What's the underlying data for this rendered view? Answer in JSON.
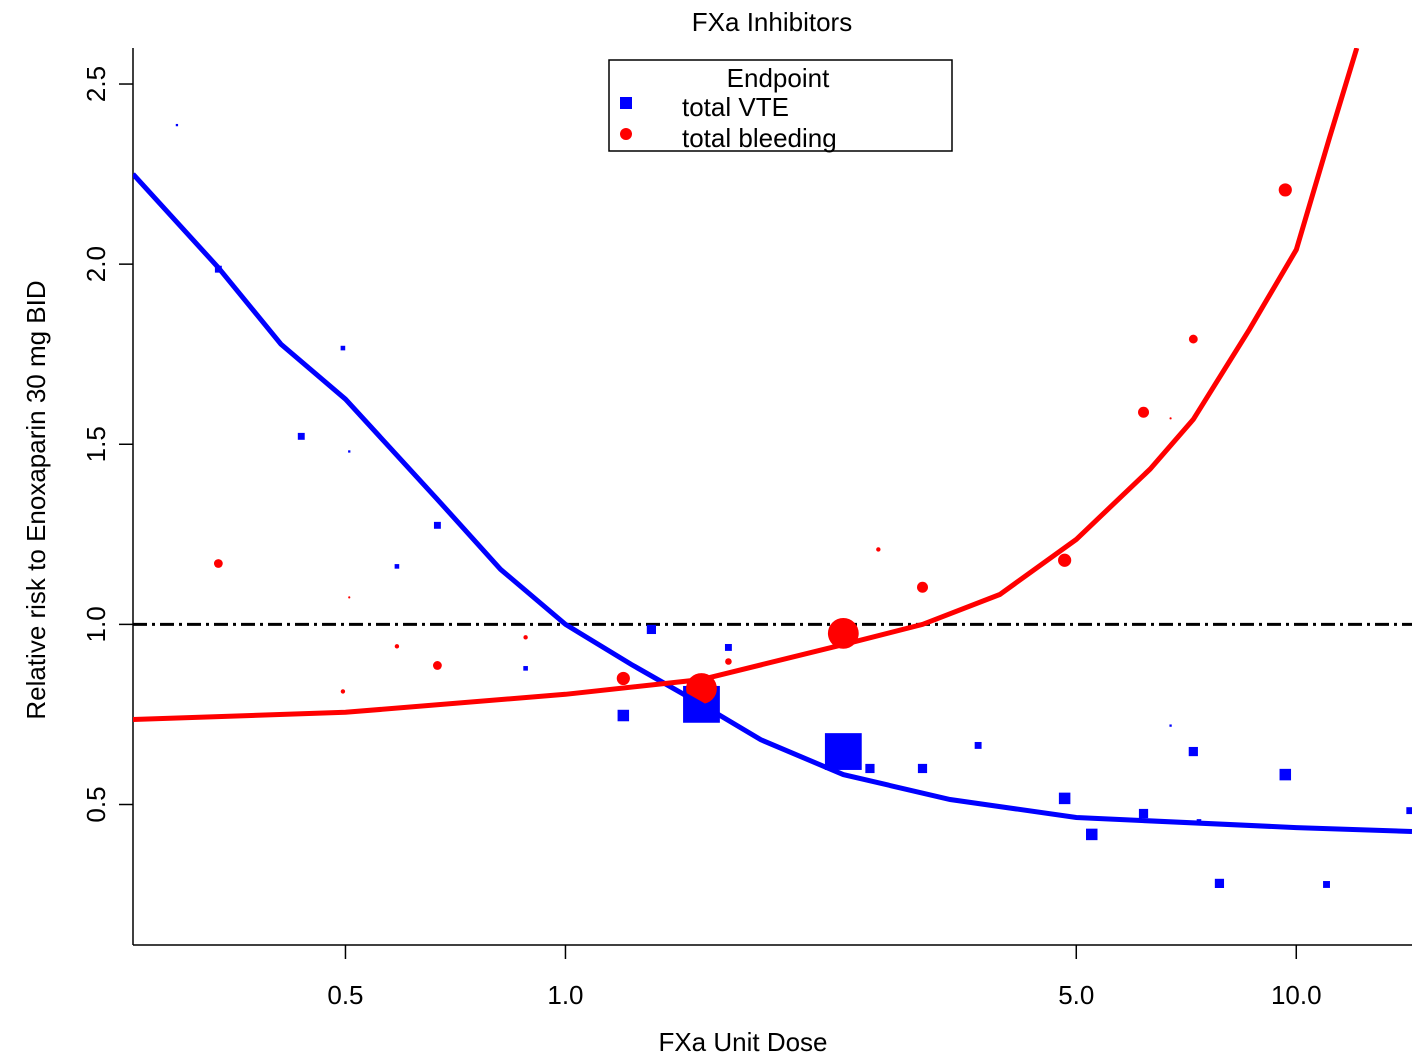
{
  "chart_data": {
    "type": "scatter",
    "title": "FXa Inhibitors",
    "x_label": "FXa Unit Dose",
    "y_label": "Relative risk to Enoxaparin 30 mg BID",
    "log_x": true,
    "xlim": [
      0.256,
      14.4
    ],
    "ylim": [
      0.11,
      2.6
    ],
    "xticks": [
      0.5,
      {
        "value": 1,
        "label": "1.0"
      },
      {
        "value": 5,
        "label": "5.0"
      },
      {
        "value": 10,
        "label": "10.0"
      }
    ],
    "yticks": [
      0.5,
      {
        "value": 1,
        "label": "1.0"
      },
      1.5,
      {
        "value": 2,
        "label": "2.0"
      },
      2.5
    ],
    "reference_line": 1,
    "legend_title": "Endpoint",
    "legend_position": "top",
    "series": [
      {
        "name": "total VTE",
        "color": "#0000ff",
        "marker": "square",
        "x": [
          0.294,
          0.335,
          0.435,
          0.496,
          0.506,
          0.588,
          0.668,
          0.882,
          1.2,
          1.311,
          1.535,
          1.671,
          2.4,
          2.61,
          3.08,
          3.67,
          4.82,
          5.25,
          6.18,
          6.73,
          7.23,
          7.36,
          7.85,
          9.66,
          11.0,
          14.3
        ],
        "values": [
          2.386,
          1.986,
          1.522,
          1.767,
          1.48,
          1.161,
          1.275,
          0.878,
          0.747,
          0.986,
          0.778,
          0.936,
          0.647,
          0.6,
          0.6,
          0.664,
          0.517,
          0.417,
          0.475,
          0.719,
          0.647,
          0.453,
          0.281,
          0.583,
          0.278,
          0.483
        ],
        "sizes": [
          1,
          3,
          3,
          2,
          1,
          2,
          3,
          2,
          5,
          4,
          16,
          3,
          16,
          4,
          4,
          3,
          5,
          5,
          4,
          1,
          4,
          2,
          4,
          5,
          3,
          3
        ],
        "fit_x": [
          0.256,
          0.335,
          0.408,
          0.5,
          0.668,
          0.815,
          1.0,
          1.23,
          1.535,
          1.85,
          2.4,
          3.36,
          5.0,
          10,
          14.4
        ],
        "fit_values": [
          2.25,
          1.99,
          1.778,
          1.625,
          1.347,
          1.153,
          1.0,
          0.889,
          0.778,
          0.68,
          0.583,
          0.514,
          0.464,
          0.436,
          0.425
        ]
      },
      {
        "name": "total bleeding",
        "color": "#ff0000",
        "marker": "circle",
        "x": [
          0.335,
          0.496,
          0.506,
          0.588,
          0.668,
          0.882,
          1.2,
          1.535,
          1.671,
          2.4,
          2.68,
          3.08,
          4.82,
          6.18,
          6.73,
          7.23,
          9.66
        ],
        "values": [
          1.169,
          0.814,
          1.075,
          0.939,
          0.886,
          0.964,
          0.85,
          0.822,
          0.897,
          0.975,
          1.208,
          1.103,
          1.178,
          1.589,
          1.572,
          1.792,
          2.206
        ],
        "sizes": [
          4,
          2,
          1,
          2,
          4,
          2,
          6,
          14,
          3,
          14,
          2,
          5,
          6,
          5,
          1,
          4,
          6
        ],
        "fit_x": [
          0.256,
          0.5,
          1.0,
          1.535,
          2.4,
          3.08,
          3.93,
          5.0,
          6.31,
          7.23,
          8.63,
          10,
          11.1,
          12.1
        ],
        "fit_values": [
          0.736,
          0.756,
          0.806,
          0.847,
          0.944,
          1.0,
          1.083,
          1.236,
          1.431,
          1.569,
          1.819,
          2.04,
          2.35,
          2.6
        ]
      }
    ]
  }
}
